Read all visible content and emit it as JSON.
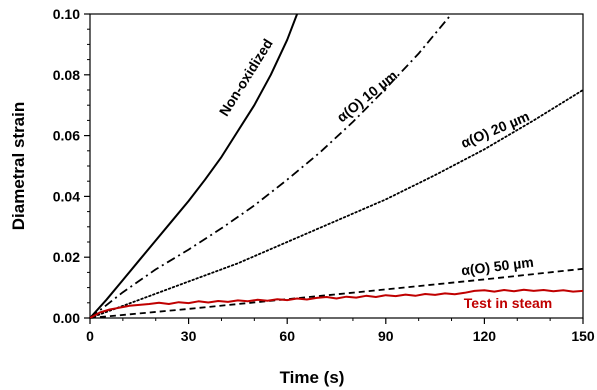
{
  "chart_data": {
    "type": "line",
    "title": "",
    "xlabel": "Time (s)",
    "ylabel": "Diametral strain",
    "xlim": [
      0,
      150
    ],
    "ylim": [
      0,
      0.1
    ],
    "xticks": [
      0,
      30,
      60,
      90,
      120,
      150
    ],
    "xtick_labels": [
      "0",
      "30",
      "60",
      "90",
      "120",
      "150"
    ],
    "yticks": [
      0,
      0.02,
      0.04,
      0.06,
      0.08,
      0.1
    ],
    "ytick_labels": [
      "0.00",
      "0.02",
      "0.04",
      "0.06",
      "0.08",
      "0.10"
    ],
    "grid": false,
    "series": [
      {
        "name": "Non-oxidized",
        "style": "solid",
        "color": "#000000",
        "x": [
          0,
          5,
          10,
          15,
          20,
          25,
          30,
          35,
          40,
          45,
          50,
          55,
          60,
          63
        ],
        "y": [
          0,
          0.006,
          0.0125,
          0.019,
          0.0255,
          0.032,
          0.0385,
          0.0455,
          0.053,
          0.0615,
          0.07,
          0.08,
          0.0915,
          0.1
        ]
      },
      {
        "name": "α(O) 10 µm",
        "style": "dashdot",
        "color": "#000000",
        "x": [
          0,
          10,
          20,
          30,
          40,
          50,
          60,
          70,
          80,
          90,
          100,
          110
        ],
        "y": [
          0,
          0.0085,
          0.016,
          0.0225,
          0.0295,
          0.037,
          0.0455,
          0.0545,
          0.0645,
          0.0755,
          0.087,
          0.1
        ]
      },
      {
        "name": "α(O) 20 µm",
        "style": "dotted",
        "color": "#000000",
        "x": [
          0,
          15,
          30,
          45,
          60,
          75,
          90,
          105,
          120,
          135,
          150
        ],
        "y": [
          0,
          0.006,
          0.012,
          0.018,
          0.025,
          0.032,
          0.039,
          0.047,
          0.0555,
          0.065,
          0.075
        ]
      },
      {
        "name": "α(O) 50 µm",
        "style": "dashed",
        "color": "#000000",
        "x": [
          0,
          30,
          60,
          90,
          120,
          150
        ],
        "y": [
          0,
          0.003,
          0.0062,
          0.0094,
          0.0127,
          0.0162
        ]
      },
      {
        "name": "Test in steam",
        "style": "solid",
        "color": "#c00000",
        "x": [
          0,
          3,
          6,
          9,
          12,
          15,
          18,
          21,
          24,
          27,
          30,
          33,
          36,
          39,
          42,
          45,
          48,
          51,
          54,
          57,
          60,
          63,
          66,
          69,
          72,
          75,
          78,
          81,
          84,
          87,
          90,
          93,
          96,
          99,
          102,
          105,
          108,
          111,
          114,
          117,
          120,
          123,
          126,
          129,
          132,
          135,
          138,
          141,
          144,
          147,
          150
        ],
        "y": [
          0,
          0.0018,
          0.0028,
          0.0034,
          0.004,
          0.0043,
          0.0046,
          0.005,
          0.0046,
          0.0052,
          0.0049,
          0.0055,
          0.0051,
          0.0056,
          0.0053,
          0.0058,
          0.0055,
          0.006,
          0.0057,
          0.0062,
          0.0059,
          0.0064,
          0.0061,
          0.0066,
          0.0069,
          0.0064,
          0.007,
          0.0067,
          0.0073,
          0.0069,
          0.0075,
          0.0072,
          0.0077,
          0.0073,
          0.0079,
          0.0076,
          0.0081,
          0.0078,
          0.0083,
          0.0089,
          0.0091,
          0.0087,
          0.0092,
          0.0088,
          0.0093,
          0.0089,
          0.0092,
          0.0088,
          0.0091,
          0.0087,
          0.0089
        ]
      }
    ],
    "annotations": [
      {
        "text": "Non-oxidized",
        "series": 0,
        "color": "#000000"
      },
      {
        "text": "α(O) 10 µm",
        "series": 1,
        "color": "#000000"
      },
      {
        "text": "α(O) 20 µm",
        "series": 2,
        "color": "#000000"
      },
      {
        "text": "α(O) 50 µm",
        "series": 3,
        "color": "#000000"
      },
      {
        "text": "Test in steam",
        "series": 4,
        "color": "#c00000"
      }
    ]
  }
}
